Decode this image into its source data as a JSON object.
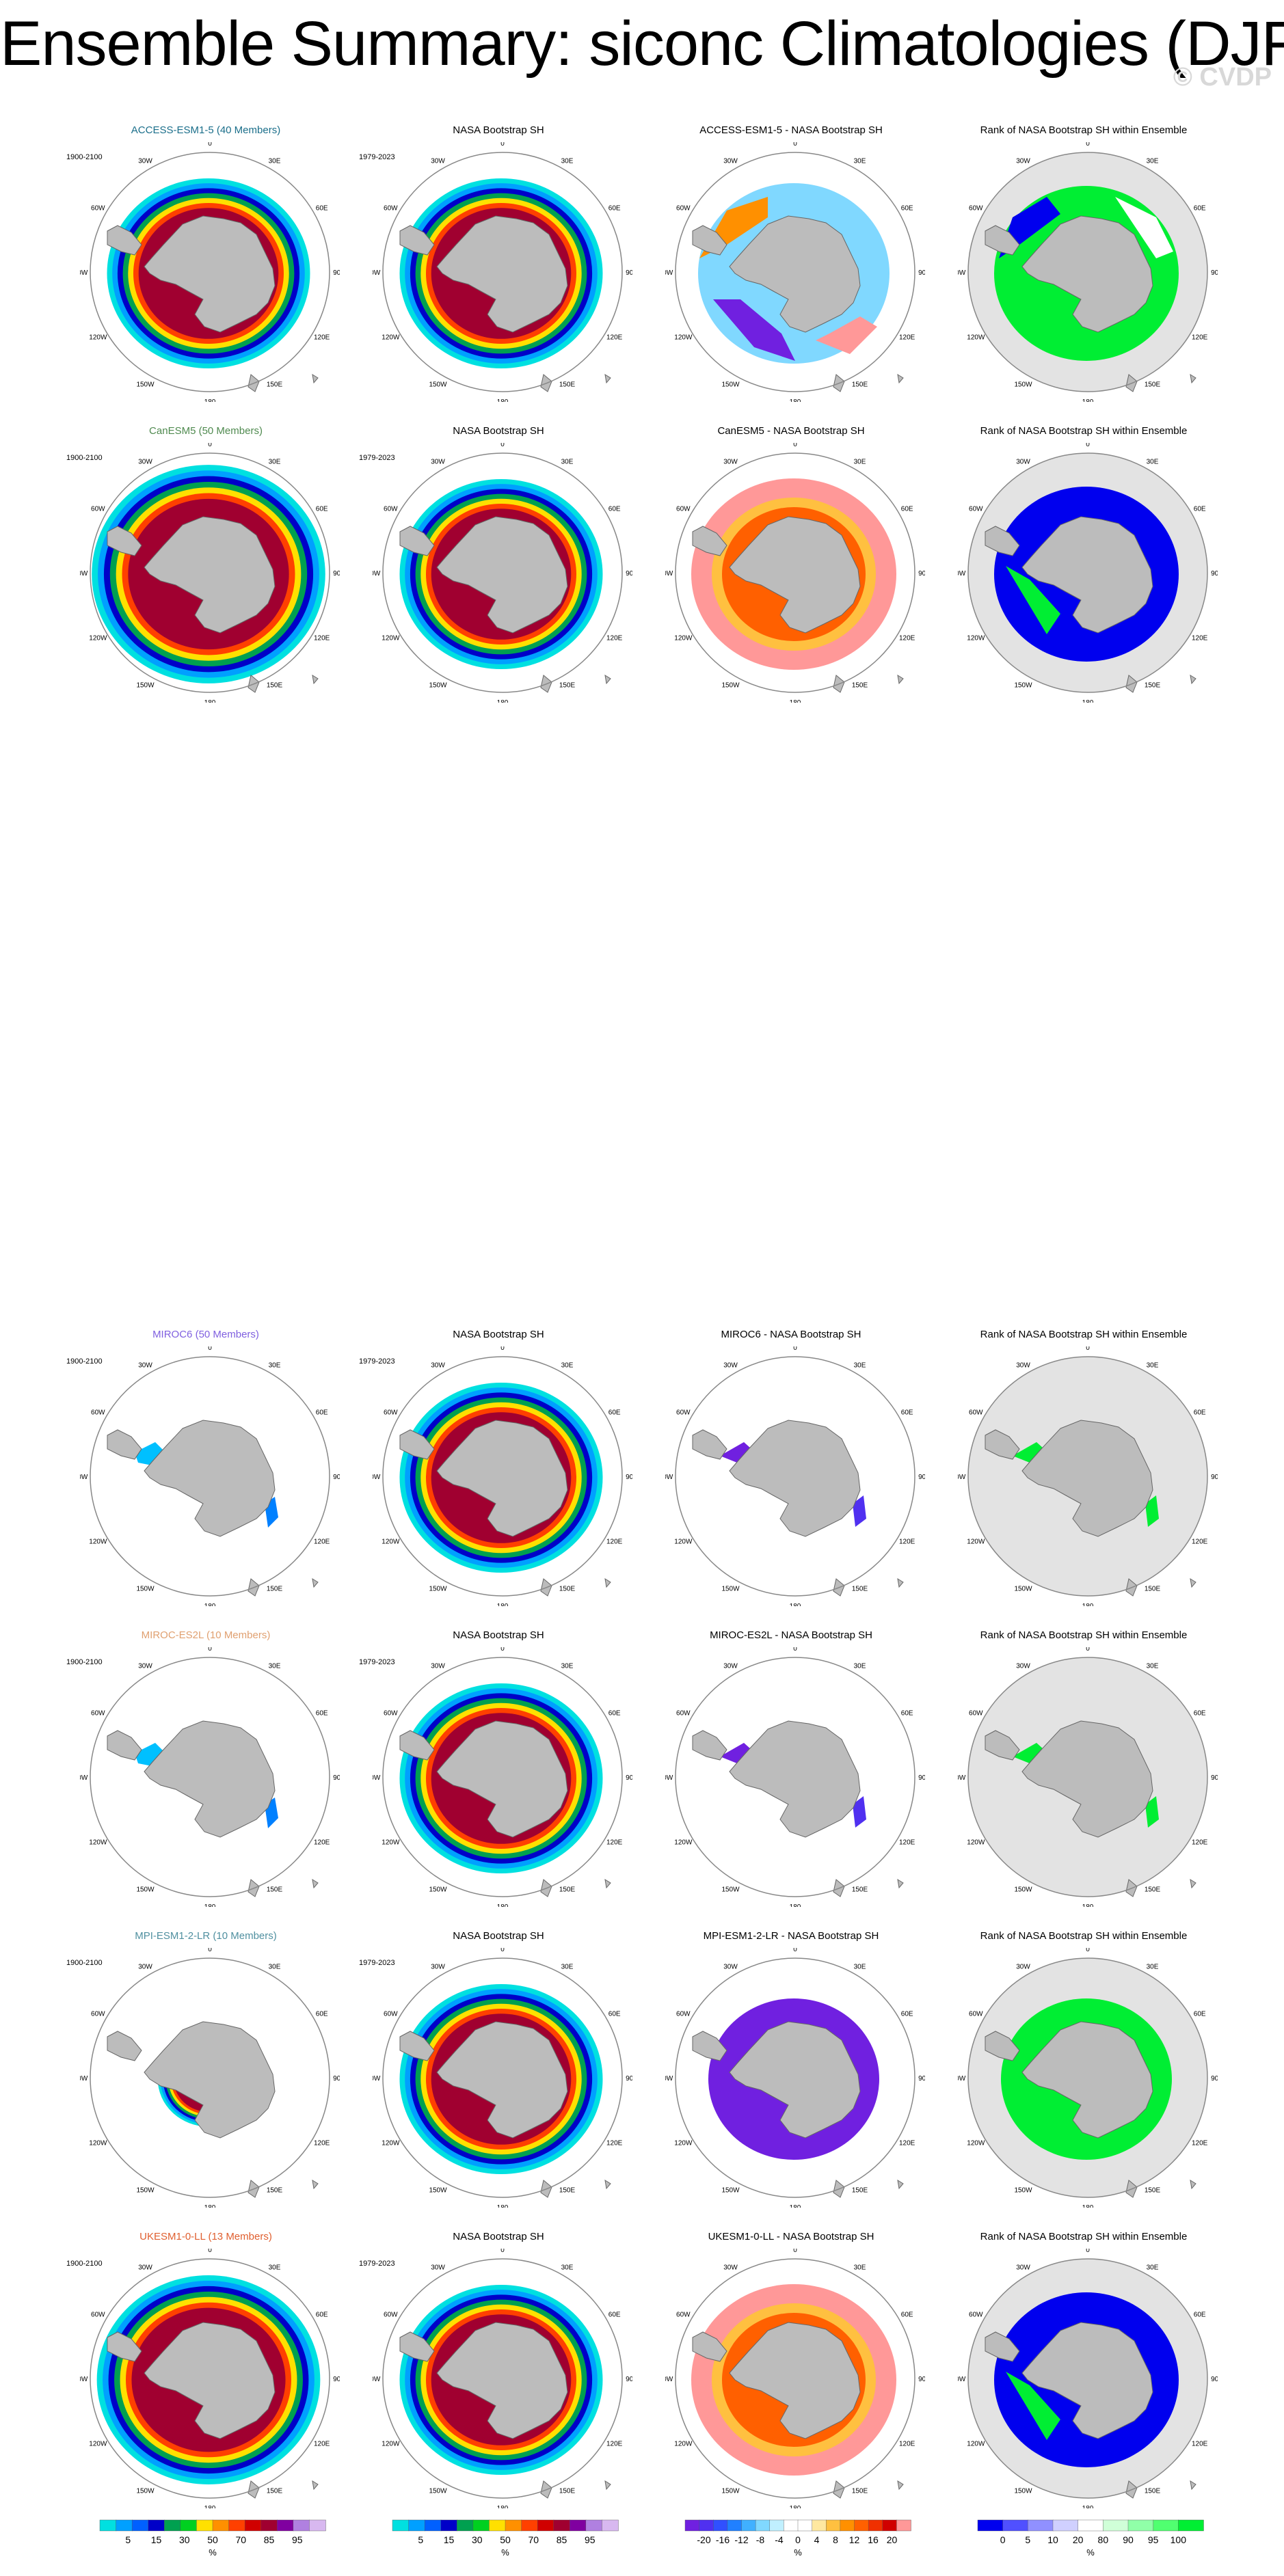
{
  "title": "Ensemble Summary: siconc Climatologies (DJF)",
  "watermark": "© CVDP",
  "obs_name": "NASA Bootstrap SH",
  "model_period": "1900-2100",
  "obs_period": "1979-2023",
  "map_labels": [
    "0",
    "30E",
    "60E",
    "90E",
    "120E",
    "150E",
    "180",
    "150W",
    "120W",
    "90W",
    "60W",
    "30W"
  ],
  "colors": {
    "land": "#bcbcbc",
    "rank_bg": "#e3e3e3",
    "circle": "#888888",
    "rank_low": "#0000ee",
    "rank_high": "#00ee33"
  },
  "rows": [
    {
      "model_title": "ACCESS-ESM1-5 (40 Members)",
      "model_color": "#1a6e8a",
      "diff_title": "ACCESS-ESM1-5 - NASA Bootstrap SH",
      "rank_title": "Rank of NASA Bootstrap SH within Ensemble",
      "ice_extent": 1.0,
      "diff_sign": "mixed",
      "rank_state": "mixed"
    },
    {
      "model_title": "CanESM5 (50 Members)",
      "model_color": "#4f8a4f",
      "diff_title": "CanESM5 - NASA Bootstrap SH",
      "rank_title": "Rank of NASA Bootstrap SH within Ensemble",
      "ice_extent": 1.15,
      "diff_sign": "positive",
      "rank_state": "low"
    },
    {
      "model_title": "MIROC6 (50 Members)",
      "model_color": "#8060e0",
      "diff_title": "MIROC6 - NASA Bootstrap SH",
      "rank_title": "Rank of NASA Bootstrap SH within Ensemble",
      "ice_extent": 0.12,
      "diff_sign": "negative",
      "rank_state": "high"
    },
    {
      "model_title": "MIROC-ES2L (10 Members)",
      "model_color": "#e0a070",
      "diff_title": "MIROC-ES2L - NASA Bootstrap SH",
      "rank_title": "Rank of NASA Bootstrap SH within Ensemble",
      "ice_extent": 0.08,
      "diff_sign": "negative",
      "rank_state": "high"
    },
    {
      "model_title": "MPI-ESM1-2-LR (10 Members)",
      "model_color": "#5090a0",
      "diff_title": "MPI-ESM1-2-LR - NASA Bootstrap SH",
      "rank_title": "Rank of NASA Bootstrap SH within Ensemble",
      "ice_extent": 0.5,
      "diff_sign": "negative",
      "rank_state": "high"
    },
    {
      "model_title": "UKESM1-0-LL (13 Members)",
      "model_color": "#e06030",
      "diff_title": "UKESM1-0-LL - NASA Bootstrap SH",
      "rank_title": "Rank of NASA Bootstrap SH within Ensemble",
      "ice_extent": 1.1,
      "diff_sign": "positive",
      "rank_state": "low"
    }
  ],
  "chart_data": {
    "type": "heatmap",
    "title": "Ensemble Summary: siconc Climatologies (DJF)",
    "projection": "south polar stereographic",
    "variable": "siconc",
    "season": "DJF",
    "units": "%",
    "colorbars": [
      {
        "name": "model",
        "unit": "%",
        "tick_labels": [
          "5",
          "15",
          "30",
          "50",
          "70",
          "85",
          "95"
        ],
        "colors": [
          "#00e0e0",
          "#00a0ff",
          "#0060ff",
          "#0000c8",
          "#00a050",
          "#00d020",
          "#ffe000",
          "#ff9000",
          "#ff4000",
          "#d00000",
          "#a00030",
          "#8000a0",
          "#b080e0",
          "#d8b8f0"
        ]
      },
      {
        "name": "obs",
        "unit": "%",
        "tick_labels": [
          "5",
          "15",
          "30",
          "50",
          "70",
          "85",
          "95"
        ],
        "colors": [
          "#00e0e0",
          "#00a0ff",
          "#0060ff",
          "#0000c8",
          "#00a050",
          "#00d020",
          "#ffe000",
          "#ff9000",
          "#ff4000",
          "#d00000",
          "#a00030",
          "#8000a0",
          "#b080e0",
          "#d8b8f0"
        ]
      },
      {
        "name": "difference",
        "unit": "%",
        "tick_labels": [
          "-20",
          "-16",
          "-12",
          "-8",
          "-4",
          "0",
          "4",
          "8",
          "12",
          "16",
          "20"
        ],
        "colors": [
          "#7020e0",
          "#5030f0",
          "#3050ff",
          "#2080ff",
          "#40b0ff",
          "#80d8ff",
          "#c0f0ff",
          "#ffffff",
          "#ffffff",
          "#ffe8a0",
          "#ffc040",
          "#ff9000",
          "#ff6000",
          "#f03000",
          "#d00000",
          "#ff9898"
        ]
      },
      {
        "name": "rank",
        "unit": "%",
        "tick_labels": [
          "0",
          "5",
          "10",
          "20",
          "80",
          "90",
          "95",
          "100"
        ],
        "colors": [
          "#0000ee",
          "#5050ff",
          "#9090ff",
          "#d0d0ff",
          "#ffffff",
          "#d0ffd8",
          "#90ffa8",
          "#50ff70",
          "#00ee33"
        ]
      }
    ]
  }
}
